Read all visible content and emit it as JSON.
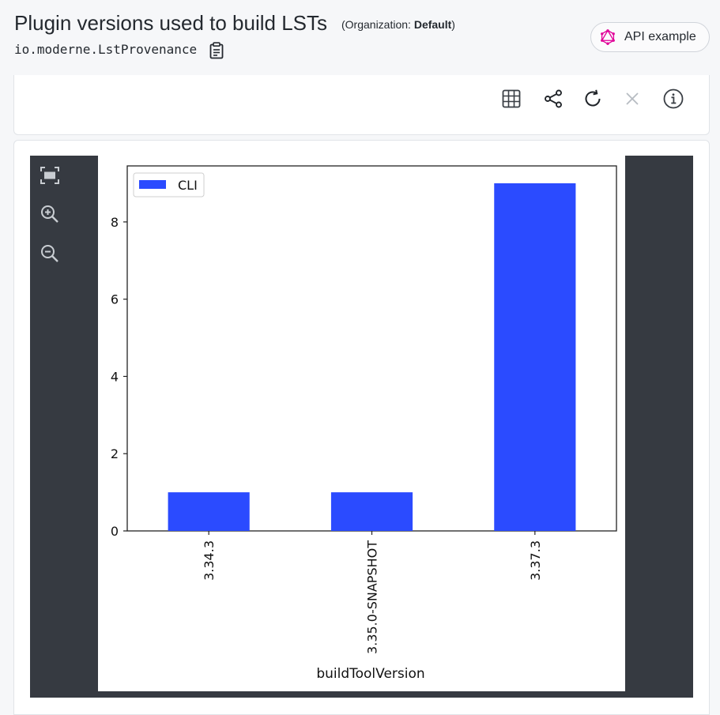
{
  "header": {
    "title": "Plugin versions used to build LSTs",
    "org_prefix": "(Organization: ",
    "org_name": "Default",
    "org_suffix": ")",
    "subtitle": "io.moderne.LstProvenance",
    "copy_icon": "clipboard-icon",
    "api_button_label": "API example",
    "api_icon": "graphql-icon"
  },
  "toolbar": {
    "icons": [
      "table-icon",
      "share-icon",
      "refresh-icon",
      "close-icon",
      "info-icon"
    ]
  },
  "viewer": {
    "icons": [
      "fit-screen-icon",
      "zoom-in-icon",
      "zoom-out-icon"
    ]
  },
  "colors": {
    "bar": "#2b4bff",
    "viewer_bg": "#363a41",
    "graphql": "#e10098"
  },
  "chart_data": {
    "type": "bar",
    "categories": [
      "3.34.3",
      "3.35.0-SNAPSHOT",
      "3.37.3"
    ],
    "series": [
      {
        "name": "CLI",
        "values": [
          1,
          1,
          9
        ]
      }
    ],
    "xlabel": "buildToolVersion",
    "ylabel": "",
    "ylim": [
      0,
      9.45
    ],
    "yticks": [
      0,
      2,
      4,
      6,
      8
    ],
    "legend": "top-left",
    "grid": false
  }
}
